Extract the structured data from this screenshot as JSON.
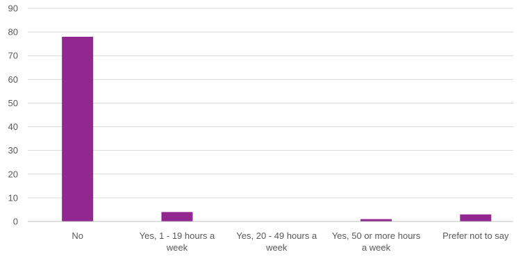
{
  "chart_data": {
    "type": "bar",
    "title": "",
    "xlabel": "",
    "ylabel": "",
    "categories": [
      [
        "No"
      ],
      [
        "Yes, 1 - 19 hours a",
        "week"
      ],
      [
        "Yes, 20 - 49 hours a",
        "week"
      ],
      [
        "Yes, 50 or more hours",
        "a week"
      ],
      [
        "Prefer not to say"
      ]
    ],
    "values": [
      78,
      4,
      0,
      1,
      3
    ],
    "ylim": [
      0,
      90
    ],
    "yticks": [
      0,
      10,
      20,
      30,
      40,
      50,
      60,
      70,
      80,
      90
    ],
    "grid": true,
    "bar_color": "#92278f",
    "grid_color": "#d9d9d9",
    "axis_color": "#bfbfbf",
    "text_color": "#595959"
  }
}
